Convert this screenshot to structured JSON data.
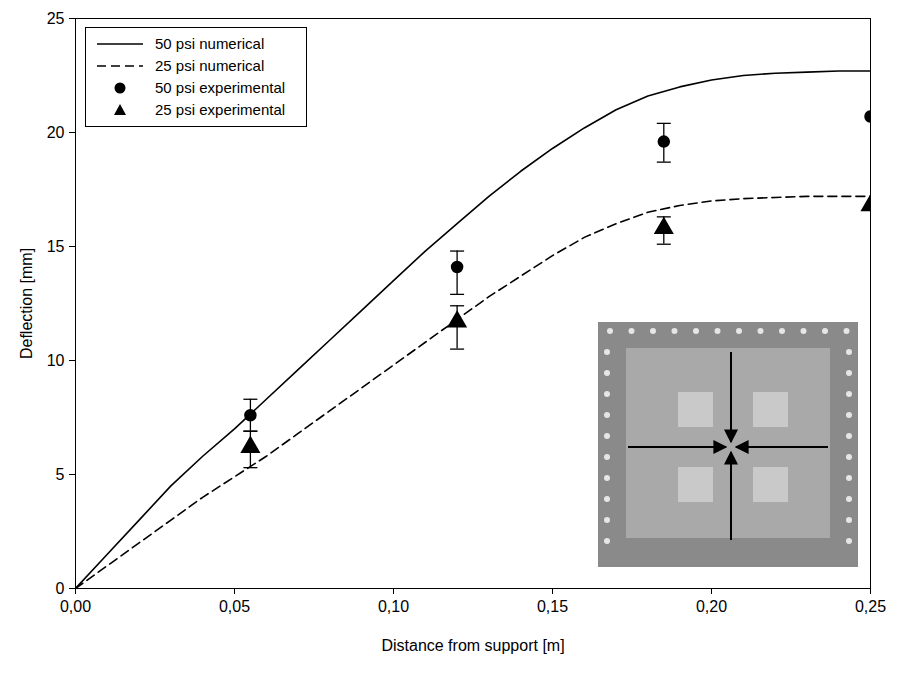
{
  "chart_data": {
    "type": "line",
    "x_label": "Distance from support [m]",
    "y_label": "Deflection [mm]",
    "xlim": [
      0,
      0.25
    ],
    "xticks": [
      {
        "value": 0,
        "label": "0,00"
      },
      {
        "value": 0.05,
        "label": "0,05"
      },
      {
        "value": 0.1,
        "label": "0,10"
      },
      {
        "value": 0.15,
        "label": "0,15"
      },
      {
        "value": 0.2,
        "label": "0,20"
      },
      {
        "value": 0.25,
        "label": "0,25"
      }
    ],
    "ylim": [
      0,
      25
    ],
    "yticks": [
      0,
      5,
      10,
      15,
      20,
      25
    ],
    "grid": false,
    "legend": "top-left",
    "series": [
      {
        "name": "50 psi numerical",
        "type": "line",
        "line_style": "solid",
        "color": "#000000",
        "x": [
          0,
          0.01,
          0.02,
          0.03,
          0.04,
          0.05,
          0.06,
          0.07,
          0.08,
          0.09,
          0.1,
          0.11,
          0.12,
          0.13,
          0.14,
          0.15,
          0.16,
          0.17,
          0.18,
          0.19,
          0.2,
          0.21,
          0.22,
          0.23,
          0.24,
          0.25
        ],
        "values": [
          0,
          1.5,
          3.0,
          4.5,
          5.8,
          7.0,
          8.3,
          9.6,
          10.9,
          12.2,
          13.5,
          14.8,
          16.0,
          17.2,
          18.3,
          19.3,
          20.2,
          21.0,
          21.6,
          22.0,
          22.3,
          22.5,
          22.6,
          22.65,
          22.7,
          22.7
        ]
      },
      {
        "name": "25 psi numerical",
        "type": "line",
        "line_style": "dashed",
        "color": "#000000",
        "x": [
          0,
          0.01,
          0.02,
          0.03,
          0.04,
          0.05,
          0.06,
          0.07,
          0.08,
          0.09,
          0.1,
          0.11,
          0.12,
          0.13,
          0.14,
          0.15,
          0.16,
          0.17,
          0.18,
          0.19,
          0.2,
          0.21,
          0.22,
          0.23,
          0.24,
          0.25
        ],
        "values": [
          0,
          1.0,
          2.0,
          3.0,
          4.0,
          4.9,
          5.8,
          6.8,
          7.8,
          8.8,
          9.8,
          10.8,
          11.8,
          12.8,
          13.7,
          14.6,
          15.4,
          16.0,
          16.5,
          16.8,
          17.0,
          17.1,
          17.15,
          17.2,
          17.2,
          17.2
        ]
      },
      {
        "name": "50 psi experimental",
        "type": "scatter",
        "marker": "circle",
        "color": "#000000",
        "x": [
          0.055,
          0.12,
          0.185,
          0.25
        ],
        "values": [
          7.6,
          14.1,
          19.6,
          20.7
        ],
        "error_low": [
          6.9,
          12.9,
          18.7,
          null
        ],
        "error_high": [
          8.3,
          14.8,
          20.4,
          null
        ]
      },
      {
        "name": "25 psi experimental",
        "type": "scatter",
        "marker": "triangle",
        "color": "#000000",
        "x": [
          0.055,
          0.12,
          0.185,
          0.25
        ],
        "values": [
          6.2,
          11.7,
          15.8,
          16.8
        ],
        "error_low": [
          5.3,
          10.5,
          15.1,
          null
        ],
        "error_high": [
          6.9,
          12.4,
          16.3,
          null
        ]
      }
    ]
  }
}
